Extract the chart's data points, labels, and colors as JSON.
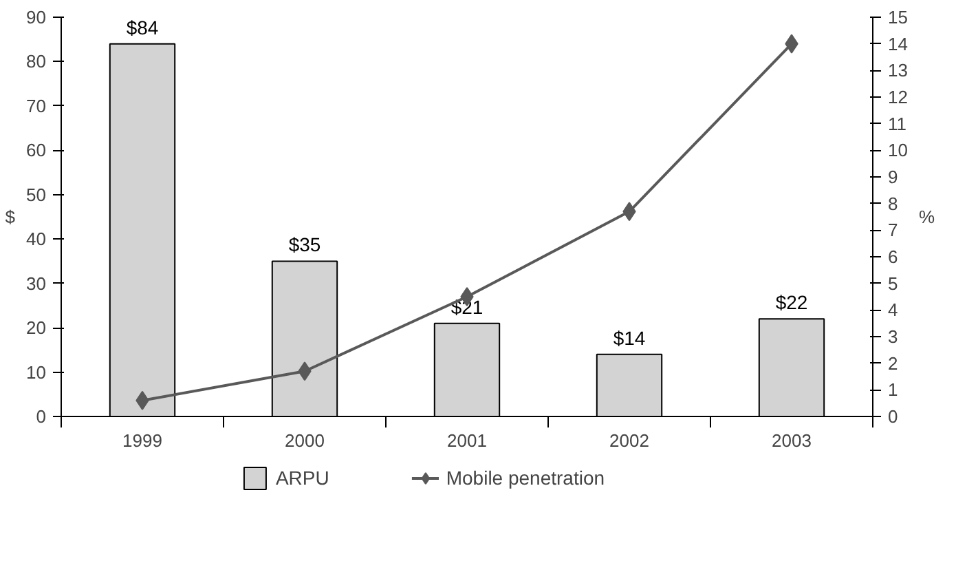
{
  "chart_data": {
    "type": "bar",
    "categories": [
      "1999",
      "2000",
      "2001",
      "2002",
      "2003"
    ],
    "series": [
      {
        "name": "ARPU",
        "color": "#d3d3d3",
        "values": [
          84,
          35,
          21,
          14,
          22
        ],
        "value_labels": [
          "$84",
          "$35",
          "$21",
          "$14",
          "$22"
        ]
      },
      {
        "name": "Mobile penetration",
        "type": "line",
        "axis": "y2",
        "color": "#595959",
        "marker": "diamond",
        "values": [
          0.6,
          1.7,
          4.5,
          7.7,
          14.0
        ]
      }
    ],
    "ylabel": "$",
    "y2label": "%",
    "ylim": [
      0,
      90
    ],
    "yticks": [
      0,
      10,
      20,
      30,
      40,
      50,
      60,
      70,
      80,
      90
    ],
    "y2lim": [
      0,
      15
    ],
    "y2ticks": [
      0,
      1,
      2,
      3,
      4,
      5,
      6,
      7,
      8,
      9,
      10,
      11,
      12,
      13,
      14,
      15
    ],
    "grid": false,
    "legend": "bottom"
  }
}
